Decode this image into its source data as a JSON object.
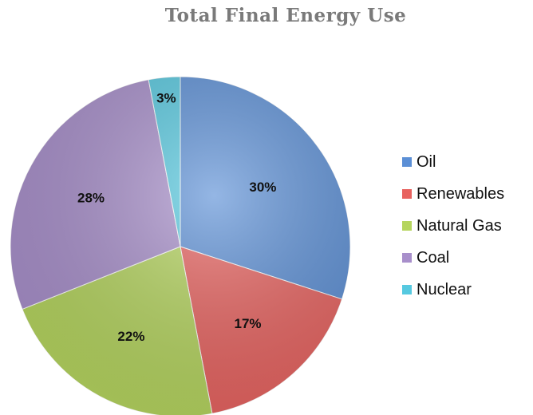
{
  "chart_data": {
    "type": "pie",
    "title": "Total Final Energy Use",
    "categories": [
      "Oil",
      "Renewables",
      "Natural Gas",
      "Coal",
      "Nuclear"
    ],
    "values": [
      30,
      17,
      22,
      28,
      3
    ],
    "labels": [
      "30%",
      "17%",
      "22%",
      "28%",
      "3%"
    ],
    "colors": [
      "#5b8fd6",
      "#e8625f",
      "#b5d55e",
      "#a88fcb",
      "#56c9e0"
    ],
    "start_angle": "12 o'clock",
    "direction": "clockwise",
    "legend_position": "right"
  }
}
